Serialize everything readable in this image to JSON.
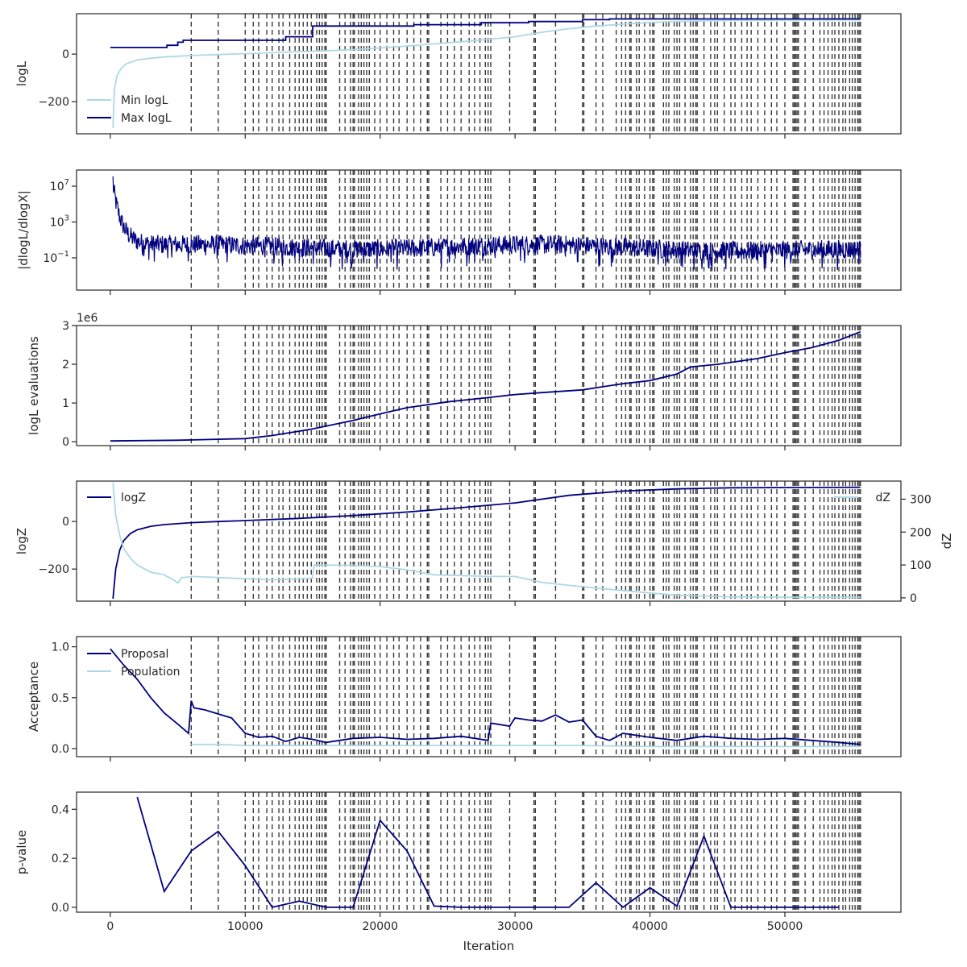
{
  "colors": {
    "navy": "#00007f",
    "light": "#add8e6",
    "vline": "#3a3a3a",
    "frame": "#262626",
    "text": "#262626"
  },
  "x_axis": {
    "label": "Iteration",
    "ticks": [
      0,
      10000,
      20000,
      30000,
      40000,
      50000
    ],
    "tick_labels": [
      "0",
      "10000",
      "20000",
      "30000",
      "40000",
      "50000"
    ],
    "range": [
      -2500,
      58600
    ]
  },
  "vlines": [
    6000,
    8000,
    10000,
    10600,
    11000,
    11600,
    12000,
    12500,
    12800,
    13300,
    13700,
    14000,
    14300,
    14600,
    14900,
    15300,
    15500,
    15700,
    15900,
    16000,
    17000,
    17400,
    17800,
    18000,
    18100,
    18400,
    18600,
    18800,
    19000,
    19200,
    19600,
    20000,
    20500,
    21000,
    21400,
    22000,
    22500,
    23000,
    23500,
    23600,
    24500,
    25000,
    25500,
    26000,
    26600,
    27000,
    27400,
    27800,
    28000,
    28200,
    29600,
    31400,
    31500,
    33000,
    35000,
    35100,
    36000,
    36500,
    37500,
    37900,
    38200,
    38500,
    38600,
    39000,
    39200,
    39600,
    40000,
    40200,
    40300,
    41000,
    41200,
    41400,
    41800,
    42000,
    42200,
    42600,
    43000,
    43200,
    43400,
    43500,
    44000,
    44500,
    44800,
    45000,
    45500,
    46000,
    46300,
    46800,
    47200,
    47500,
    48000,
    48500,
    49000,
    49400,
    50000,
    50600,
    50700,
    50800,
    50900,
    51000,
    51500,
    52100,
    52600,
    52900,
    53200,
    53500,
    53700,
    54000,
    54300,
    54500,
    54800,
    55000,
    55200,
    55400,
    55500,
    55600
  ],
  "chart_data": [
    {
      "id": "logl",
      "type": "line",
      "ylabel": "logL",
      "ylim": [
        -335,
        170
      ],
      "yticks": [
        0,
        -200
      ],
      "ytick_labels": [
        "0",
        "−200"
      ],
      "legend": "lower-left",
      "series": [
        {
          "name": "Min logL",
          "color": "light",
          "x": [
            200,
            300,
            500,
            800,
            1200,
            2000,
            3000,
            4000,
            6000,
            8000,
            10000,
            12000,
            14000,
            16000,
            18000,
            20000,
            22000,
            24000,
            26000,
            28000,
            30000,
            32000,
            34000,
            36000,
            38000,
            40000,
            42000,
            44000,
            46000,
            50000,
            55600
          ],
          "y": [
            -310,
            -150,
            -90,
            -60,
            -40,
            -25,
            -17,
            -12,
            -6,
            -2,
            2,
            6,
            10,
            14,
            19,
            26,
            34,
            43,
            52,
            62,
            73,
            92,
            107,
            118,
            126,
            133,
            137,
            140,
            142,
            143,
            144
          ]
        },
        {
          "name": "Max logL",
          "color": "navy",
          "x": [
            0,
            4200,
            4200,
            5000,
            5000,
            5400,
            5400,
            13000,
            13000,
            15000,
            15000,
            22500,
            22500,
            27500,
            27500,
            31000,
            31000,
            35000,
            35000,
            37000,
            37000,
            55600
          ],
          "y": [
            28,
            28,
            37,
            37,
            50,
            50,
            58,
            58,
            73,
            73,
            118,
            118,
            124,
            124,
            132,
            132,
            137,
            137,
            145,
            145,
            148,
            148
          ]
        }
      ]
    },
    {
      "id": "dlogl",
      "type": "line",
      "ylabel": "|dlogL/dlogX|",
      "yscale": "log",
      "ylim_log10": [
        -4.6,
        8.8
      ],
      "yticks_log10": [
        7,
        3,
        -1
      ],
      "ytick_labels": [
        "10",
        "10",
        "10"
      ],
      "ytick_exponents": [
        "7",
        "3",
        "−1"
      ],
      "series": [
        {
          "name": "",
          "color": "navy",
          "note": "dense noisy trace from ~10^8 decaying to a ~10^-1..10^2 band"
        }
      ]
    },
    {
      "id": "evals",
      "type": "line",
      "ylabel": "logL evaluations",
      "offset_label": "1e6",
      "ylim": [
        -0.1,
        3.0
      ],
      "yticks": [
        0,
        1,
        2,
        3
      ],
      "ytick_labels": [
        "0",
        "1",
        "2",
        "3"
      ],
      "series": [
        {
          "name": "",
          "color": "navy",
          "x": [
            0,
            5000,
            10000,
            12000,
            15000,
            18000,
            20000,
            22000,
            25000,
            28000,
            30000,
            32000,
            35000,
            38000,
            40000,
            42000,
            43000,
            45000,
            48000,
            50000,
            52000,
            54000,
            55600
          ],
          "y": [
            0.02,
            0.04,
            0.08,
            0.16,
            0.33,
            0.55,
            0.72,
            0.88,
            1.03,
            1.14,
            1.22,
            1.27,
            1.34,
            1.5,
            1.58,
            1.75,
            1.93,
            2.0,
            2.15,
            2.3,
            2.43,
            2.62,
            2.84
          ]
        }
      ]
    },
    {
      "id": "logz",
      "type": "line",
      "ylabel": "logZ",
      "ylabel_right": "dZ",
      "ylim": [
        -335,
        170
      ],
      "yticks": [
        0,
        -200
      ],
      "ytick_labels": [
        "0",
        "−200"
      ],
      "ylim_right": [
        -10,
        355
      ],
      "yticks_right": [
        0,
        100,
        200,
        300
      ],
      "ytick_labels_right": [
        "0",
        "100",
        "200",
        "300"
      ],
      "series": [
        {
          "name": "logZ",
          "color": "navy",
          "axis": "left",
          "legend": "upper-left",
          "x": [
            200,
            400,
            700,
            1000,
            1500,
            2000,
            3000,
            4000,
            6000,
            8000,
            10000,
            14000,
            18000,
            22000,
            26000,
            30000,
            34000,
            38000,
            42000,
            46000,
            50000,
            55600
          ],
          "y": [
            -325,
            -200,
            -120,
            -80,
            -50,
            -35,
            -20,
            -13,
            -5,
            0,
            4,
            13,
            25,
            40,
            58,
            78,
            110,
            128,
            137,
            142,
            143,
            144
          ]
        },
        {
          "name": "dZ",
          "color": "light",
          "axis": "right",
          "legend": "upper-right",
          "x": [
            200,
            400,
            700,
            1000,
            1500,
            2000,
            3000,
            4000,
            4200,
            4700,
            5000,
            5300,
            5500,
            6000,
            8000,
            10000,
            12000,
            14000,
            15000,
            15100,
            18000,
            20000,
            22000,
            24000,
            26000,
            28000,
            30000,
            32000,
            34000,
            36000,
            38000,
            40000,
            42000,
            44000,
            46000,
            50000,
            55600
          ],
          "y": [
            350,
            250,
            190,
            150,
            120,
            100,
            78,
            70,
            65,
            55,
            45,
            62,
            62,
            65,
            62,
            58,
            55,
            57,
            60,
            100,
            99,
            95,
            85,
            70,
            68,
            65,
            65,
            47,
            38,
            30,
            22,
            15,
            8,
            5,
            3,
            2,
            2
          ]
        }
      ]
    },
    {
      "id": "accept",
      "type": "line",
      "ylabel": "Acceptance",
      "ylim": [
        -0.08,
        1.1
      ],
      "yticks": [
        0,
        0.5,
        1.0
      ],
      "ytick_labels": [
        "0.0",
        "0.5",
        "1.0"
      ],
      "legend": "upper-left",
      "series": [
        {
          "name": "Proposal",
          "color": "navy",
          "x": [
            0,
            1000,
            2000,
            3000,
            4000,
            5000,
            5800,
            6000,
            6200,
            7000,
            8000,
            9000,
            10000,
            11000,
            12000,
            13000,
            14000,
            15000,
            16000,
            18000,
            20000,
            22000,
            24000,
            26000,
            28000,
            28200,
            29600,
            30000,
            31000,
            32000,
            33000,
            34000,
            35000,
            36000,
            37000,
            38000,
            40000,
            42000,
            44000,
            46000,
            48000,
            50000,
            52000,
            54000,
            55600
          ],
          "y": [
            0.98,
            0.82,
            0.68,
            0.5,
            0.35,
            0.24,
            0.15,
            0.47,
            0.4,
            0.38,
            0.34,
            0.3,
            0.15,
            0.11,
            0.12,
            0.07,
            0.11,
            0.09,
            0.06,
            0.1,
            0.11,
            0.09,
            0.1,
            0.12,
            0.08,
            0.25,
            0.22,
            0.3,
            0.28,
            0.27,
            0.33,
            0.26,
            0.28,
            0.12,
            0.08,
            0.15,
            0.11,
            0.08,
            0.12,
            0.1,
            0.09,
            0.1,
            0.08,
            0.06,
            0.04
          ]
        },
        {
          "name": "Population",
          "color": "light",
          "x": [
            6000,
            8000,
            10000,
            12000,
            15000,
            20000,
            25000,
            30000,
            35000,
            40000,
            45000,
            50000,
            55600
          ],
          "y": [
            0.04,
            0.04,
            0.03,
            0.03,
            0.03,
            0.03,
            0.03,
            0.03,
            0.03,
            0.02,
            0.02,
            0.02,
            0.02
          ]
        }
      ]
    },
    {
      "id": "pvalue",
      "type": "line",
      "ylabel": "p-value",
      "xlabel": "Iteration",
      "ylim": [
        -0.02,
        0.47
      ],
      "yticks": [
        0,
        0.2,
        0.4
      ],
      "ytick_labels": [
        "0.0",
        "0.2",
        "0.4"
      ],
      "series": [
        {
          "name": "",
          "color": "navy",
          "x": [
            2000,
            4000,
            6000,
            8000,
            10000,
            12000,
            14000,
            16000,
            18000,
            20000,
            22000,
            24000,
            26000,
            28000,
            30000,
            32000,
            34000,
            36000,
            38000,
            40000,
            42000,
            44000,
            46000,
            48000,
            50000,
            52000,
            54000
          ],
          "y": [
            0.45,
            0.065,
            0.23,
            0.31,
            0.17,
            0.0,
            0.025,
            0.0,
            0.0,
            0.355,
            0.23,
            0.005,
            0.0,
            0.0,
            0.0,
            0.0,
            0.0,
            0.1,
            0.0,
            0.08,
            0.005,
            0.29,
            0.0,
            0.0,
            0.0,
            0.0,
            0.0
          ]
        }
      ]
    }
  ]
}
